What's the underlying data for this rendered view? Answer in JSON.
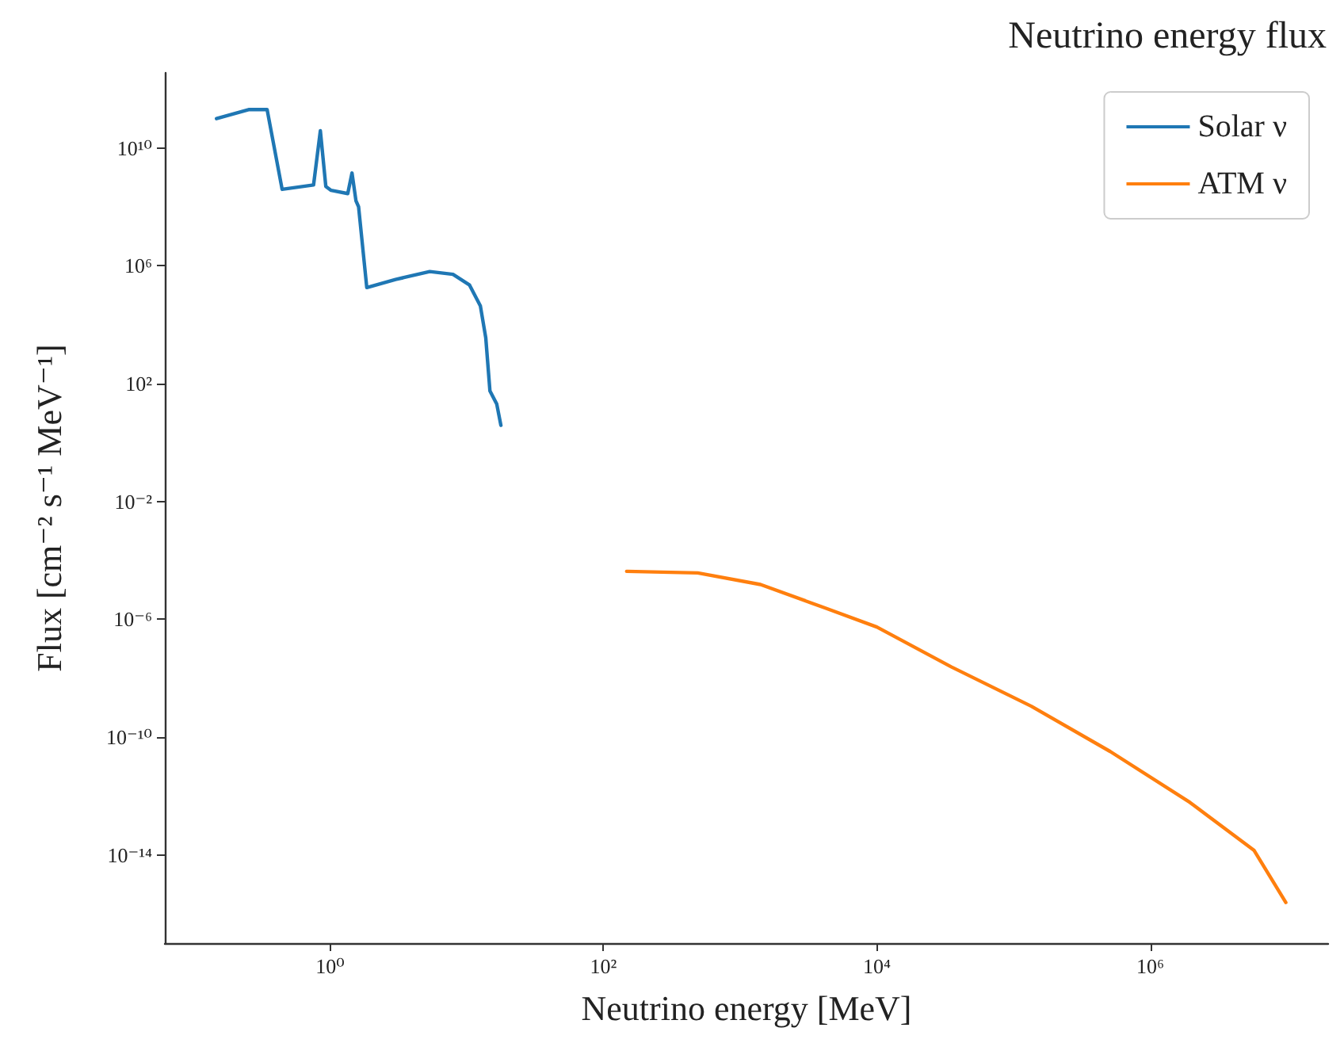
{
  "chart_data": {
    "type": "line",
    "title": "Neutrino energy flux",
    "xlabel": "Neutrino energy [MeV]",
    "ylabel": "Flux [cm⁻² s⁻¹ MeV⁻¹]",
    "log": "xy",
    "grid": false,
    "legend": "top right",
    "marker": "none",
    "line_style": "solid",
    "xlim": [
      0.062,
      20000000
    ],
    "ylim": [
      1e-17,
      3500000000000.0
    ],
    "xticks": [
      {
        "value": 1,
        "label": "10⁰"
      },
      {
        "value": 100,
        "label": "10²"
      },
      {
        "value": 10000,
        "label": "10⁴"
      },
      {
        "value": 1000000,
        "label": "10⁶"
      }
    ],
    "yticks": [
      {
        "value": 1e-14,
        "label": "10⁻¹⁴"
      },
      {
        "value": 1e-10,
        "label": "10⁻¹⁰"
      },
      {
        "value": 1e-06,
        "label": "10⁻⁶"
      },
      {
        "value": 0.01,
        "label": "10⁻²"
      },
      {
        "value": 100,
        "label": "10²"
      },
      {
        "value": 1000000,
        "label": "10⁶"
      },
      {
        "value": 10000000000,
        "label": "10¹⁰"
      }
    ],
    "series": [
      {
        "name": "Solar ν",
        "color": "#1f77b4",
        "x": [
          0.148,
          0.257,
          0.347,
          0.447,
          0.759,
          0.851,
          0.933,
          1.02,
          1.35,
          1.45,
          1.55,
          1.62,
          1.86,
          3.02,
          5.37,
          7.94,
          10.5,
          12.6,
          13.8,
          14.8,
          16.6,
          17.8
        ],
        "values": [
          98000000000.0,
          200000000000.0,
          200000000000.0,
          390000000.0,
          550000000.0,
          38000000000.0,
          490000000.0,
          360000000.0,
          280000000.0,
          1400000000.0,
          160000000.0,
          100000000.0,
          180000.0,
          340000.0,
          630000.0,
          510000.0,
          220000.0,
          43000.0,
          3500.0,
          56,
          20,
          3.8
        ]
      },
      {
        "name": "ATM ν",
        "color": "#ff7f0e",
        "x": [
          148,
          490,
          1410,
          4170,
          10000,
          35000,
          135000,
          510000,
          1950000,
          5750000,
          9800000
        ],
        "values": [
          4.2e-05,
          3.7e-05,
          1.5e-05,
          2.4e-06,
          5.4e-07,
          2.4e-08,
          1.1e-09,
          3.2e-11,
          6e-13,
          1.4e-14,
          2.4e-16
        ]
      }
    ]
  }
}
